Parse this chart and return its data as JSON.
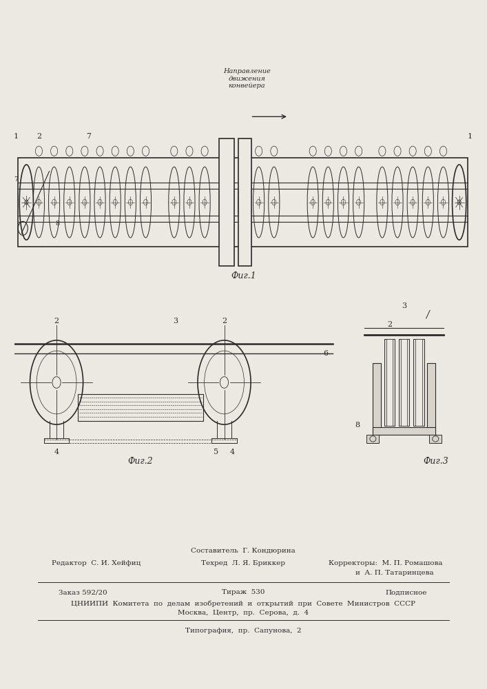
{
  "bg_color": "#ece9e2",
  "line_color": "#2a2a2a",
  "fig1_caption": "Фиг.1",
  "fig2_caption": "Фиг.2",
  "fig3_caption": "Фиг.3",
  "footer_comp": "Составитель  Г. Кондюрина",
  "footer_ed": "Редактор  С. И. Хейфиц",
  "footer_tech": "Техред  Л. Я. Бриккер",
  "footer_corr": "Корректоры:  М. П. Ромашова",
  "footer_corr2": "и  А. П. Татаринцева",
  "footer_order": "Заказ 592/20",
  "footer_tirazh": "Тираж  530",
  "footer_podp": "Подписное",
  "footer_org": "ЦНИИПИ  Комитета  по  делам  изобретений  и  открытий  при  Совете  Министров  СССР",
  "footer_addr": "Москва,  Центр,  пр.  Серова,  д.  4",
  "footer_tipo": "Типография,  пр.  Сапунова,  2"
}
